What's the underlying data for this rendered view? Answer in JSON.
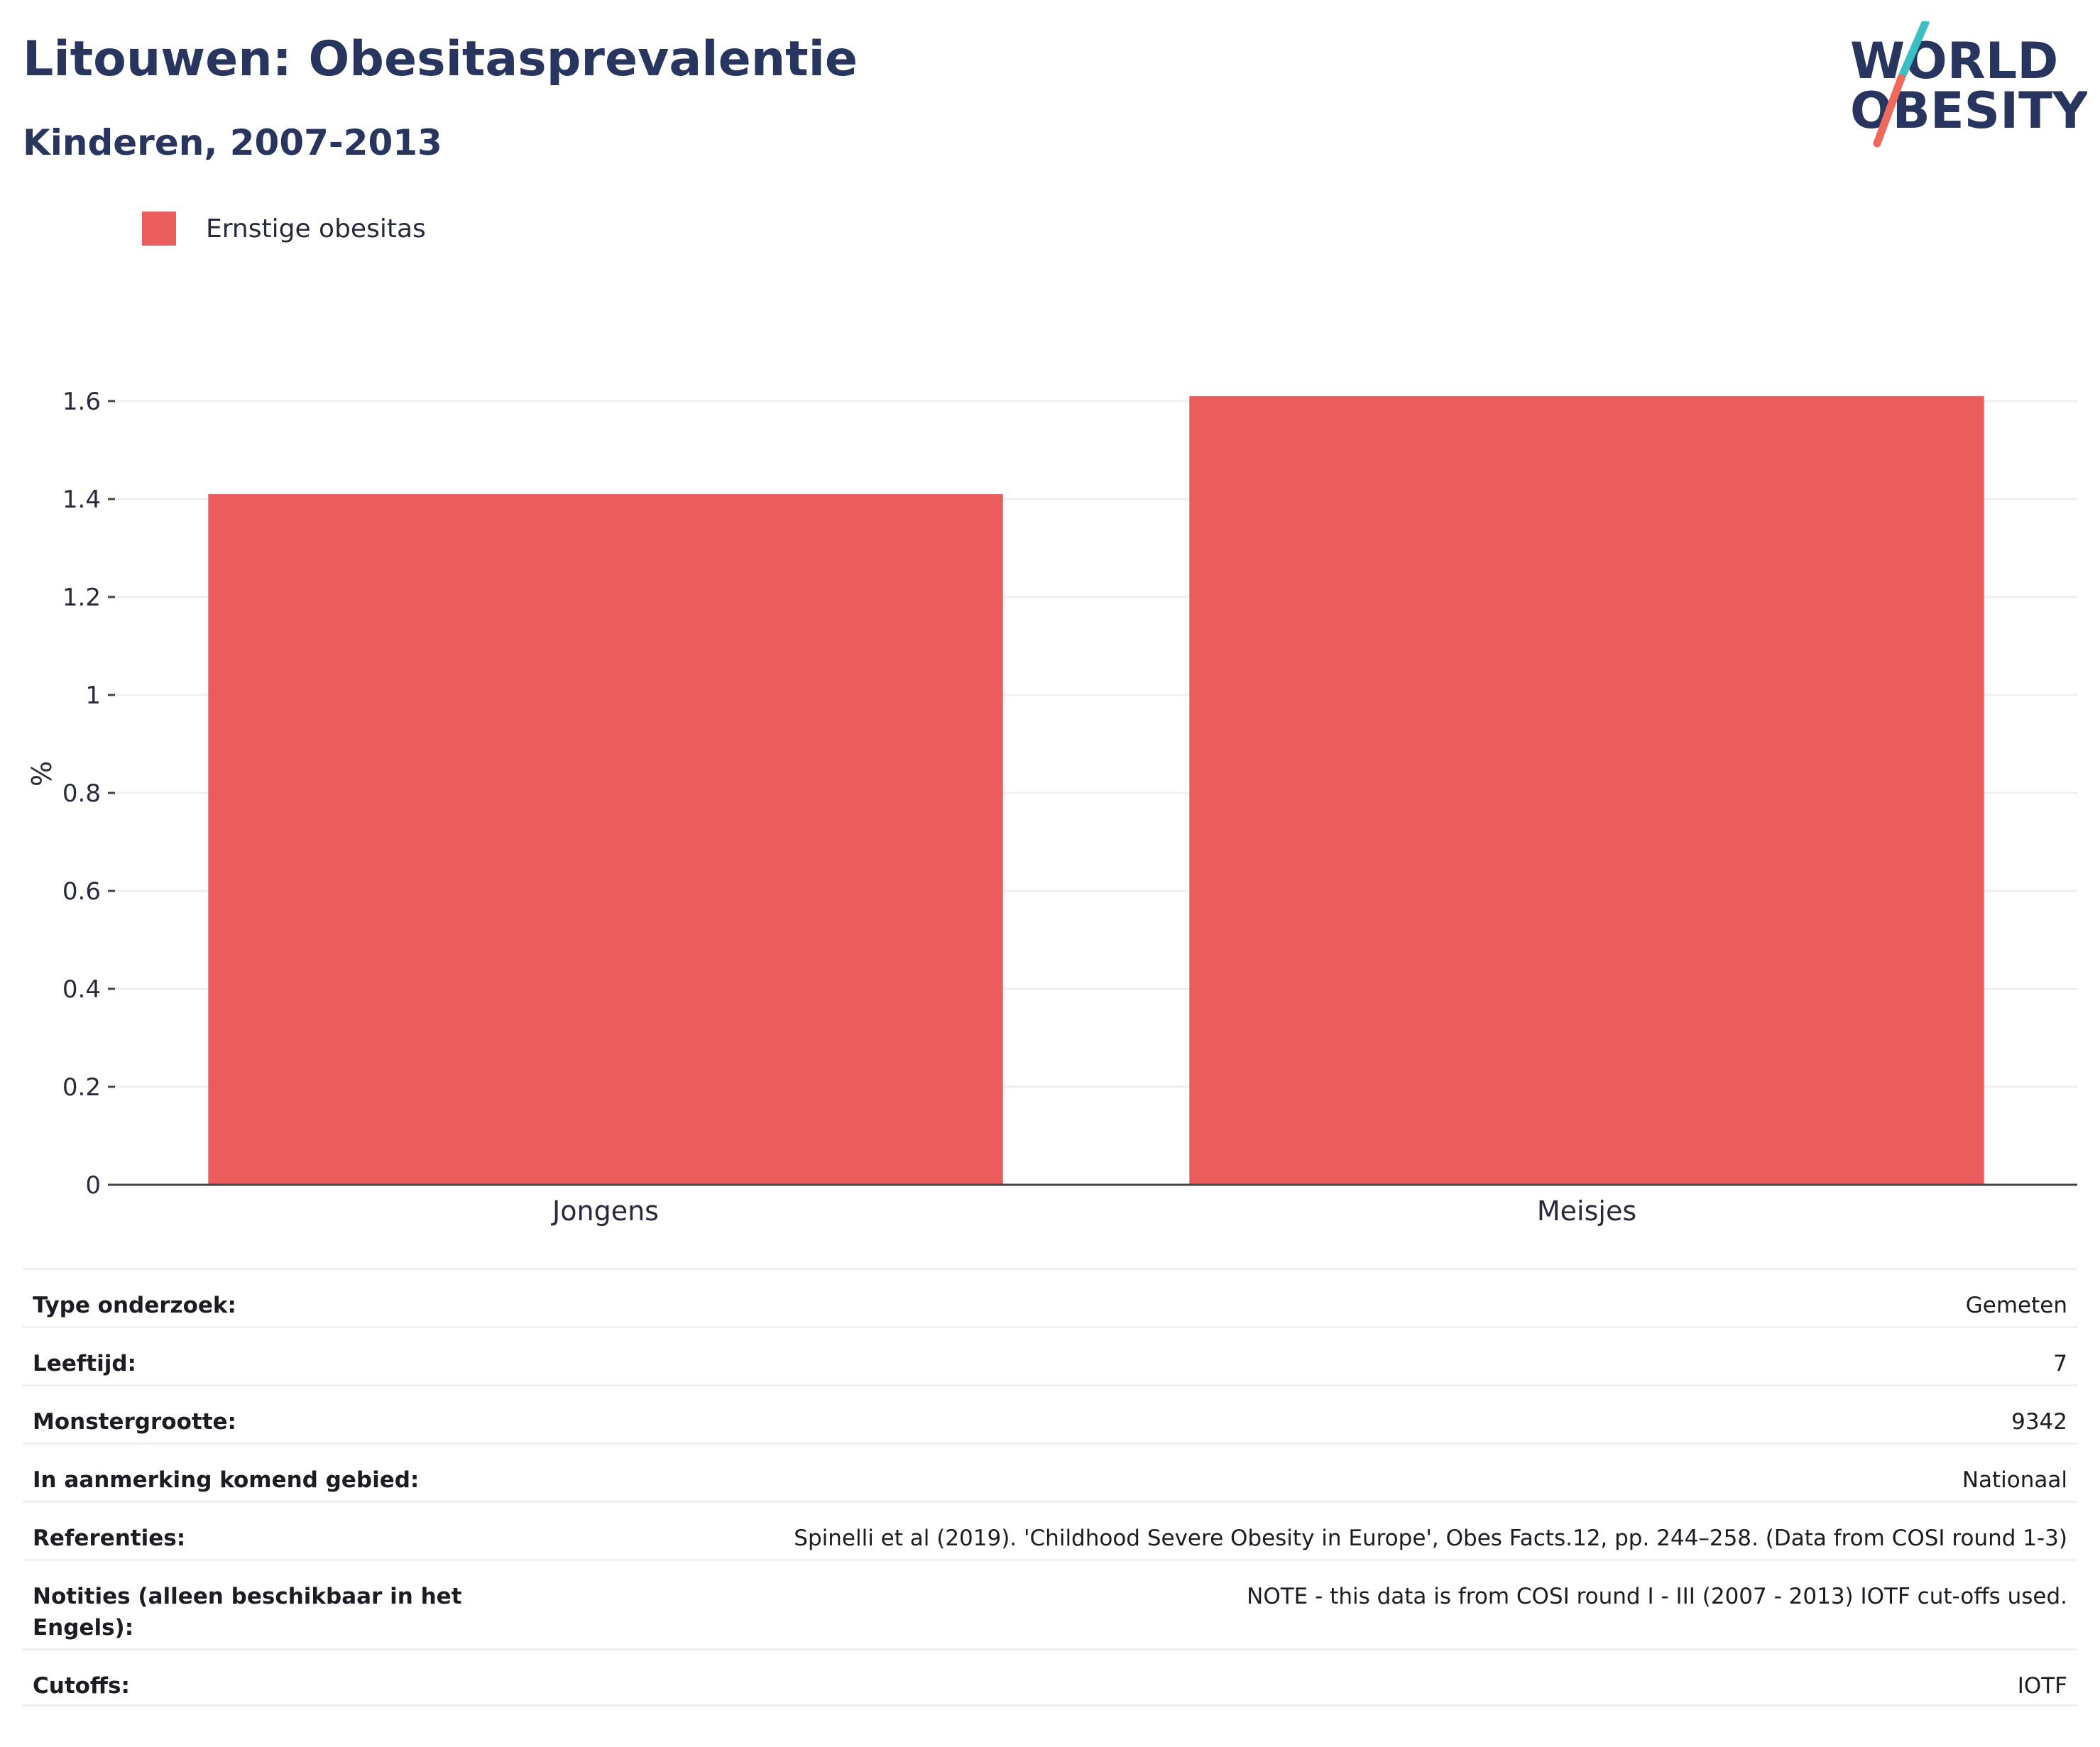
{
  "header": {
    "title": "Litouwen: Obesitasprevalentie",
    "subtitle": "Kinderen, 2007-2013"
  },
  "logo": {
    "line1": "WORLD",
    "line2": "OBESITY",
    "colors": {
      "text": "#27355f",
      "slash_top": "#3bbfc3",
      "slash_bottom": "#ef6a5a"
    }
  },
  "chart_data": {
    "type": "bar",
    "categories": [
      "Jongens",
      "Meisjes"
    ],
    "series": [
      {
        "name": "Ernstige obesitas",
        "values": [
          1.41,
          1.61
        ],
        "color": "#eb5c5c"
      }
    ],
    "title": "Litouwen: Obesitasprevalentie",
    "subtitle": "Kinderen, 2007-2013",
    "xlabel": "",
    "ylabel": "%",
    "ylim": [
      0,
      1.6
    ],
    "yticks": [
      0,
      0.2,
      0.4,
      0.6,
      0.8,
      1,
      1.2,
      1.4,
      1.6
    ],
    "ytick_labels": [
      "0",
      "0.2",
      "0.4",
      "0.6",
      "0.8",
      "1",
      "1.2",
      "1.4",
      "1.6"
    ],
    "grid": true,
    "legend_position": "top-left"
  },
  "info": {
    "rows": [
      {
        "label": "Type onderzoek:",
        "value": "Gemeten"
      },
      {
        "label": "Leeftijd:",
        "value": "7"
      },
      {
        "label": "Monstergrootte:",
        "value": "9342"
      },
      {
        "label": "In aanmerking komend gebied:",
        "value": "Nationaal"
      },
      {
        "label": "Referenties:",
        "value": "Spinelli et al (2019). 'Childhood Severe Obesity in Europe', Obes Facts.12, pp. 244–258. (Data from COSI round 1-3)"
      },
      {
        "label": "Notities (alleen beschikbaar in het Engels):",
        "value": "NOTE - this data is from COSI round I - III (2007 - 2013) IOTF cut-offs used."
      },
      {
        "label": "Cutoffs:",
        "value": "IOTF"
      }
    ]
  }
}
